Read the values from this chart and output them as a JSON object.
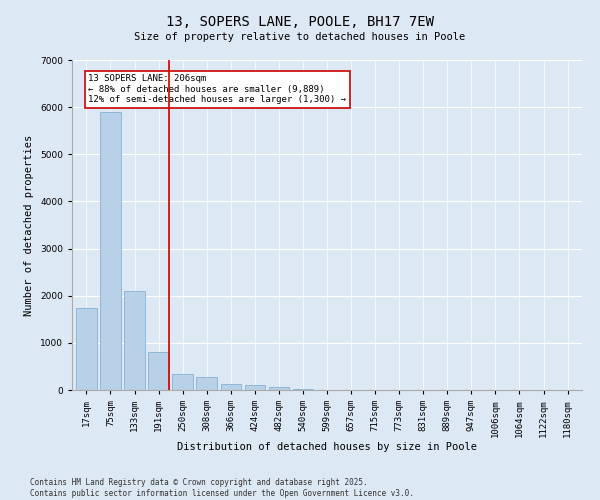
{
  "title": "13, SOPERS LANE, POOLE, BH17 7EW",
  "subtitle": "Size of property relative to detached houses in Poole",
  "xlabel": "Distribution of detached houses by size in Poole",
  "ylabel": "Number of detached properties",
  "categories": [
    "17sqm",
    "75sqm",
    "133sqm",
    "191sqm",
    "250sqm",
    "308sqm",
    "366sqm",
    "424sqm",
    "482sqm",
    "540sqm",
    "599sqm",
    "657sqm",
    "715sqm",
    "773sqm",
    "831sqm",
    "889sqm",
    "947sqm",
    "1006sqm",
    "1064sqm",
    "1122sqm",
    "1180sqm"
  ],
  "values": [
    1750,
    5900,
    2100,
    800,
    350,
    280,
    130,
    110,
    60,
    20,
    5,
    3,
    2,
    1,
    1,
    1,
    0,
    0,
    0,
    0,
    0
  ],
  "bar_color": "#b8d0e8",
  "bar_edge_color": "#7aaad0",
  "vline_color": "#cc0000",
  "annotation_text": "13 SOPERS LANE: 206sqm\n← 88% of detached houses are smaller (9,889)\n12% of semi-detached houses are larger (1,300) →",
  "annotation_box_color": "#cc0000",
  "annotation_fill": "#ffffff",
  "ylim": [
    0,
    7000
  ],
  "yticks": [
    0,
    1000,
    2000,
    3000,
    4000,
    5000,
    6000,
    7000
  ],
  "fig_background_color": "#dce8f4",
  "plot_background": "#dce8f4",
  "footer_line1": "Contains HM Land Registry data © Crown copyright and database right 2025.",
  "footer_line2": "Contains public sector information licensed under the Open Government Licence v3.0.",
  "title_fontsize": 10,
  "axis_fontsize": 7.5,
  "tick_fontsize": 6.5,
  "annotation_fontsize": 6.5,
  "footer_fontsize": 5.5
}
